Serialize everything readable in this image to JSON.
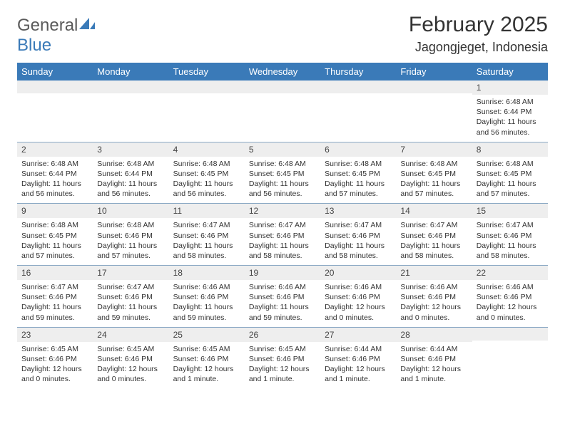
{
  "brand": {
    "textGray": "General",
    "textBlue": "Blue"
  },
  "title": "February 2025",
  "location": "Jagongjeget, Indonesia",
  "colors": {
    "headerBar": "#3a7ab8",
    "dayNumBg": "#eeeeee",
    "rowBorder": "#8aa8c4",
    "textPrimary": "#333333",
    "logoGray": "#5a5a5a"
  },
  "fonts": {
    "title_pt": 30,
    "location_pt": 18,
    "dow_pt": 13,
    "daynum_pt": 12,
    "body_pt": 10.5
  },
  "dow": [
    "Sunday",
    "Monday",
    "Tuesday",
    "Wednesday",
    "Thursday",
    "Friday",
    "Saturday"
  ],
  "weeks": [
    [
      {
        "n": "",
        "sunrise": "",
        "sunset": "",
        "daylight": ""
      },
      {
        "n": "",
        "sunrise": "",
        "sunset": "",
        "daylight": ""
      },
      {
        "n": "",
        "sunrise": "",
        "sunset": "",
        "daylight": ""
      },
      {
        "n": "",
        "sunrise": "",
        "sunset": "",
        "daylight": ""
      },
      {
        "n": "",
        "sunrise": "",
        "sunset": "",
        "daylight": ""
      },
      {
        "n": "",
        "sunrise": "",
        "sunset": "",
        "daylight": ""
      },
      {
        "n": "1",
        "sunrise": "Sunrise: 6:48 AM",
        "sunset": "Sunset: 6:44 PM",
        "daylight": "Daylight: 11 hours and 56 minutes."
      }
    ],
    [
      {
        "n": "2",
        "sunrise": "Sunrise: 6:48 AM",
        "sunset": "Sunset: 6:44 PM",
        "daylight": "Daylight: 11 hours and 56 minutes."
      },
      {
        "n": "3",
        "sunrise": "Sunrise: 6:48 AM",
        "sunset": "Sunset: 6:44 PM",
        "daylight": "Daylight: 11 hours and 56 minutes."
      },
      {
        "n": "4",
        "sunrise": "Sunrise: 6:48 AM",
        "sunset": "Sunset: 6:45 PM",
        "daylight": "Daylight: 11 hours and 56 minutes."
      },
      {
        "n": "5",
        "sunrise": "Sunrise: 6:48 AM",
        "sunset": "Sunset: 6:45 PM",
        "daylight": "Daylight: 11 hours and 56 minutes."
      },
      {
        "n": "6",
        "sunrise": "Sunrise: 6:48 AM",
        "sunset": "Sunset: 6:45 PM",
        "daylight": "Daylight: 11 hours and 57 minutes."
      },
      {
        "n": "7",
        "sunrise": "Sunrise: 6:48 AM",
        "sunset": "Sunset: 6:45 PM",
        "daylight": "Daylight: 11 hours and 57 minutes."
      },
      {
        "n": "8",
        "sunrise": "Sunrise: 6:48 AM",
        "sunset": "Sunset: 6:45 PM",
        "daylight": "Daylight: 11 hours and 57 minutes."
      }
    ],
    [
      {
        "n": "9",
        "sunrise": "Sunrise: 6:48 AM",
        "sunset": "Sunset: 6:45 PM",
        "daylight": "Daylight: 11 hours and 57 minutes."
      },
      {
        "n": "10",
        "sunrise": "Sunrise: 6:48 AM",
        "sunset": "Sunset: 6:46 PM",
        "daylight": "Daylight: 11 hours and 57 minutes."
      },
      {
        "n": "11",
        "sunrise": "Sunrise: 6:47 AM",
        "sunset": "Sunset: 6:46 PM",
        "daylight": "Daylight: 11 hours and 58 minutes."
      },
      {
        "n": "12",
        "sunrise": "Sunrise: 6:47 AM",
        "sunset": "Sunset: 6:46 PM",
        "daylight": "Daylight: 11 hours and 58 minutes."
      },
      {
        "n": "13",
        "sunrise": "Sunrise: 6:47 AM",
        "sunset": "Sunset: 6:46 PM",
        "daylight": "Daylight: 11 hours and 58 minutes."
      },
      {
        "n": "14",
        "sunrise": "Sunrise: 6:47 AM",
        "sunset": "Sunset: 6:46 PM",
        "daylight": "Daylight: 11 hours and 58 minutes."
      },
      {
        "n": "15",
        "sunrise": "Sunrise: 6:47 AM",
        "sunset": "Sunset: 6:46 PM",
        "daylight": "Daylight: 11 hours and 58 minutes."
      }
    ],
    [
      {
        "n": "16",
        "sunrise": "Sunrise: 6:47 AM",
        "sunset": "Sunset: 6:46 PM",
        "daylight": "Daylight: 11 hours and 59 minutes."
      },
      {
        "n": "17",
        "sunrise": "Sunrise: 6:47 AM",
        "sunset": "Sunset: 6:46 PM",
        "daylight": "Daylight: 11 hours and 59 minutes."
      },
      {
        "n": "18",
        "sunrise": "Sunrise: 6:46 AM",
        "sunset": "Sunset: 6:46 PM",
        "daylight": "Daylight: 11 hours and 59 minutes."
      },
      {
        "n": "19",
        "sunrise": "Sunrise: 6:46 AM",
        "sunset": "Sunset: 6:46 PM",
        "daylight": "Daylight: 11 hours and 59 minutes."
      },
      {
        "n": "20",
        "sunrise": "Sunrise: 6:46 AM",
        "sunset": "Sunset: 6:46 PM",
        "daylight": "Daylight: 12 hours and 0 minutes."
      },
      {
        "n": "21",
        "sunrise": "Sunrise: 6:46 AM",
        "sunset": "Sunset: 6:46 PM",
        "daylight": "Daylight: 12 hours and 0 minutes."
      },
      {
        "n": "22",
        "sunrise": "Sunrise: 6:46 AM",
        "sunset": "Sunset: 6:46 PM",
        "daylight": "Daylight: 12 hours and 0 minutes."
      }
    ],
    [
      {
        "n": "23",
        "sunrise": "Sunrise: 6:45 AM",
        "sunset": "Sunset: 6:46 PM",
        "daylight": "Daylight: 12 hours and 0 minutes."
      },
      {
        "n": "24",
        "sunrise": "Sunrise: 6:45 AM",
        "sunset": "Sunset: 6:46 PM",
        "daylight": "Daylight: 12 hours and 0 minutes."
      },
      {
        "n": "25",
        "sunrise": "Sunrise: 6:45 AM",
        "sunset": "Sunset: 6:46 PM",
        "daylight": "Daylight: 12 hours and 1 minute."
      },
      {
        "n": "26",
        "sunrise": "Sunrise: 6:45 AM",
        "sunset": "Sunset: 6:46 PM",
        "daylight": "Daylight: 12 hours and 1 minute."
      },
      {
        "n": "27",
        "sunrise": "Sunrise: 6:44 AM",
        "sunset": "Sunset: 6:46 PM",
        "daylight": "Daylight: 12 hours and 1 minute."
      },
      {
        "n": "28",
        "sunrise": "Sunrise: 6:44 AM",
        "sunset": "Sunset: 6:46 PM",
        "daylight": "Daylight: 12 hours and 1 minute."
      },
      {
        "n": "",
        "sunrise": "",
        "sunset": "",
        "daylight": ""
      }
    ]
  ]
}
